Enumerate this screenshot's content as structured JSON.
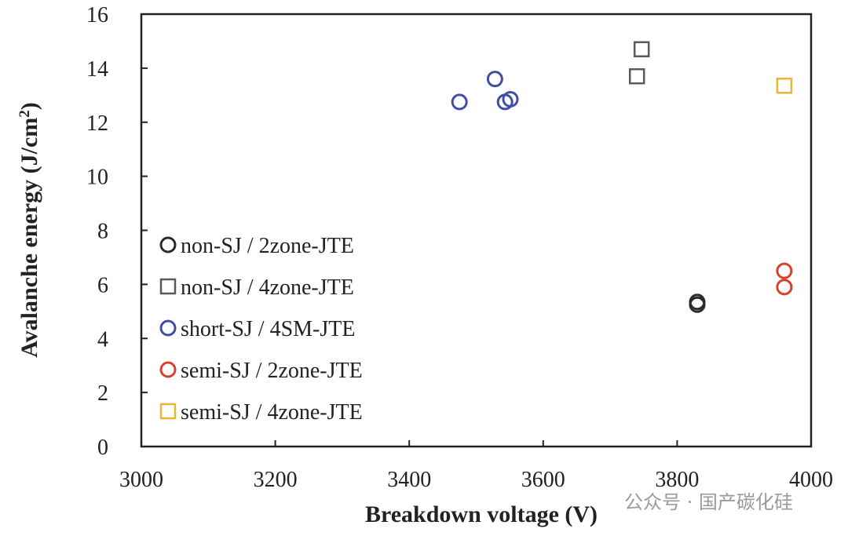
{
  "chart_data": {
    "type": "scatter",
    "title": "",
    "xlabel": "Breakdown voltage (V)",
    "ylabel_main": "Avalanche energy (J/cm",
    "ylabel_sup": "2",
    "ylabel_close": ")",
    "xlim": [
      3000,
      4000
    ],
    "ylim": [
      0,
      16
    ],
    "xticks": [
      3000,
      3200,
      3400,
      3600,
      3800,
      4000
    ],
    "yticks": [
      0,
      2,
      4,
      6,
      8,
      10,
      12,
      14,
      16
    ],
    "grid": false,
    "legend_position": "lower-left",
    "series": [
      {
        "name": "non-SJ / 2zone-JTE",
        "marker": "circle",
        "color": "#2b2b2b",
        "points": [
          [
            3830,
            5.35
          ],
          [
            3830,
            5.25
          ]
        ]
      },
      {
        "name": "non-SJ / 4zone-JTE",
        "marker": "square",
        "color": "#5a5a5a",
        "points": [
          [
            3740,
            13.7
          ],
          [
            3747,
            14.7
          ]
        ]
      },
      {
        "name": "short-SJ / 4SM-JTE",
        "marker": "circle",
        "color": "#3f4fa6",
        "points": [
          [
            3475,
            12.75
          ],
          [
            3528,
            13.6
          ],
          [
            3543,
            12.75
          ],
          [
            3551,
            12.85
          ]
        ]
      },
      {
        "name": "semi-SJ / 2zone-JTE",
        "marker": "circle",
        "color": "#d9412f",
        "points": [
          [
            3960,
            6.5
          ],
          [
            3960,
            5.9
          ]
        ]
      },
      {
        "name": "semi-SJ / 4zone-JTE",
        "marker": "square",
        "color": "#e8b43a",
        "points": [
          [
            3960,
            13.35
          ]
        ]
      }
    ]
  },
  "watermark": "公众号 · 国产碳化硅"
}
